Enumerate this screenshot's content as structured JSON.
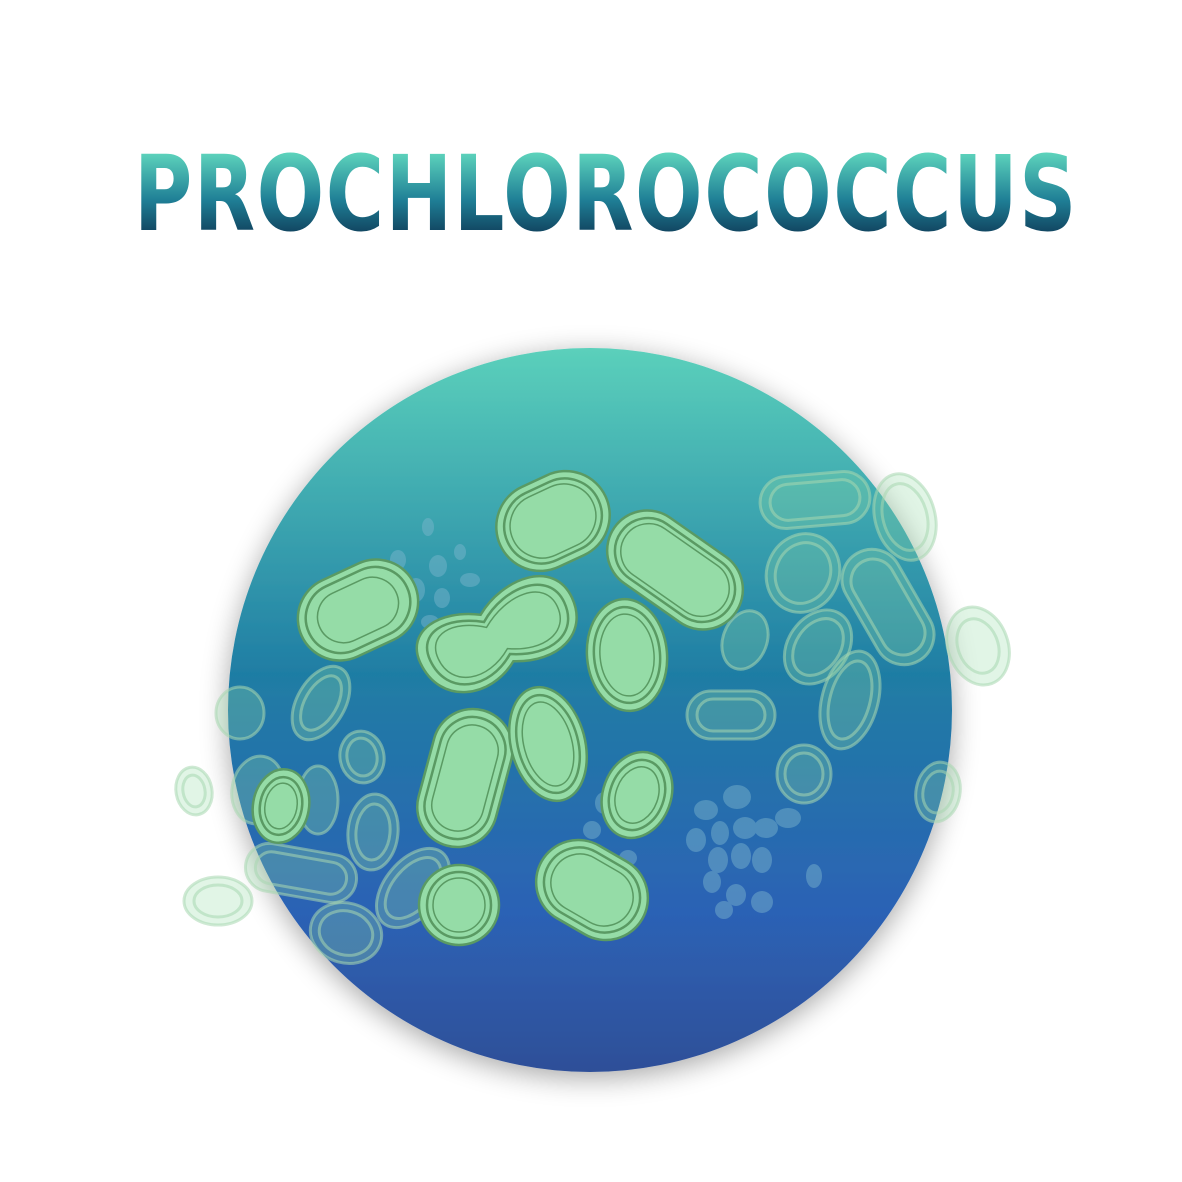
{
  "title": "PROCHLOROCOCCUS",
  "colors": {
    "title_gradient_top": "#5fd6bd",
    "title_gradient_bottom": "#0d3350",
    "disc_top": "#5bd0bb",
    "disc_mid": "#1f7da4",
    "disc_low": "#2c62b5",
    "disc_bottom": "#2f4f98",
    "cell_fill": "#95dca7",
    "cell_stroke": "#5a9a63",
    "background": "#ffffff"
  },
  "icons": {
    "main": "bacteria-cluster-icon"
  }
}
